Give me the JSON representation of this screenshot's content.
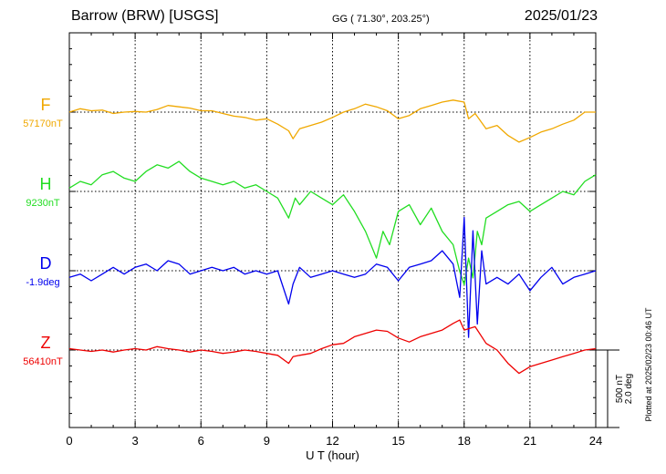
{
  "header": {
    "station": "Barrow (BRW)  [USGS]",
    "coords": "GG ( 71.30°, 203.25°)",
    "date": "2025/01/23"
  },
  "plotted_note": "Plotted at 2025/02/23 00:46 UT",
  "scale_bar": {
    "nt": "500 nT",
    "deg": "2.0 deg"
  },
  "chart_data": {
    "type": "line",
    "xlabel": "U T (hour)",
    "xlim": [
      0,
      24
    ],
    "xticks": [
      0,
      3,
      6,
      9,
      12,
      15,
      18,
      21,
      24
    ],
    "grid": true,
    "scale_per_division": "500 nT / 2.0 deg",
    "series": [
      {
        "name": "F",
        "baseline_label": "57170nT",
        "color": "#f0a800",
        "baseline_row": 1,
        "x": [
          0,
          0.5,
          1,
          1.5,
          2,
          2.5,
          3,
          3.5,
          4,
          4.5,
          5,
          5.5,
          6,
          6.5,
          7,
          7.5,
          8,
          8.5,
          9,
          9.5,
          10,
          10.2,
          10.5,
          11,
          11.5,
          12,
          12.5,
          13,
          13.5,
          14,
          14.5,
          15,
          15.5,
          16,
          16.5,
          17,
          17.5,
          18,
          18.2,
          18.5,
          19,
          19.5,
          20,
          20.5,
          21,
          21.5,
          22,
          22.5,
          23,
          23.5,
          24
        ],
        "y": [
          0,
          5,
          2,
          3,
          -2,
          0,
          1,
          0,
          4,
          10,
          8,
          6,
          2,
          2,
          -2,
          -6,
          -8,
          -12,
          -10,
          -18,
          -28,
          -40,
          -25,
          -20,
          -15,
          -8,
          0,
          5,
          12,
          8,
          2,
          -10,
          -5,
          5,
          10,
          15,
          18,
          15,
          -10,
          -2,
          -25,
          -20,
          -35,
          -45,
          -38,
          -30,
          -25,
          -18,
          -12,
          0,
          0
        ]
      },
      {
        "name": "H",
        "baseline_label": "9230nT",
        "color": "#22dd22",
        "baseline_row": 2,
        "x": [
          0,
          0.5,
          1,
          1.5,
          2,
          2.5,
          3,
          3.5,
          4,
          4.5,
          5,
          5.5,
          6,
          6.5,
          7,
          7.5,
          8,
          8.5,
          9,
          9.5,
          10,
          10.3,
          10.5,
          11,
          11.5,
          12,
          12.5,
          13,
          13.5,
          14,
          14.3,
          14.6,
          15,
          15.5,
          16,
          16.5,
          17,
          17.5,
          17.8,
          18,
          18.2,
          18.4,
          18.6,
          18.8,
          19,
          19.5,
          20,
          20.5,
          21,
          21.5,
          22,
          22.5,
          23,
          23.5,
          24
        ],
        "y": [
          5,
          15,
          10,
          25,
          30,
          20,
          15,
          30,
          40,
          35,
          45,
          30,
          20,
          15,
          10,
          15,
          5,
          10,
          0,
          -10,
          -40,
          -10,
          -20,
          0,
          -10,
          -20,
          -5,
          -30,
          -60,
          -100,
          -60,
          -80,
          -30,
          -20,
          -50,
          -25,
          -60,
          -80,
          -120,
          -140,
          -100,
          -130,
          -60,
          -80,
          -40,
          -30,
          -20,
          -15,
          -30,
          -20,
          -10,
          0,
          -5,
          15,
          25
        ]
      },
      {
        "name": "D",
        "baseline_label": "-1.9deg",
        "color": "#0000ee",
        "baseline_row": 3,
        "x": [
          0,
          0.5,
          1,
          1.5,
          2,
          2.5,
          3,
          3.5,
          4,
          4.5,
          5,
          5.5,
          6,
          6.5,
          7,
          7.5,
          8,
          8.5,
          9,
          9.5,
          10,
          10.2,
          10.5,
          11,
          11.5,
          12,
          12.5,
          13,
          13.5,
          14,
          14.5,
          15,
          15.5,
          16,
          16.5,
          17,
          17.5,
          17.8,
          18,
          18.2,
          18.4,
          18.6,
          18.8,
          19,
          19.5,
          20,
          20.5,
          21,
          21.5,
          22,
          22.5,
          23,
          23.5,
          24
        ],
        "y": [
          -10,
          -5,
          -15,
          -5,
          5,
          -5,
          5,
          10,
          0,
          15,
          10,
          -5,
          0,
          5,
          0,
          5,
          -5,
          0,
          -5,
          0,
          -50,
          -20,
          5,
          -10,
          -5,
          0,
          -5,
          -10,
          -5,
          10,
          5,
          -15,
          5,
          10,
          15,
          30,
          10,
          -40,
          80,
          -100,
          60,
          -80,
          30,
          -20,
          -10,
          -20,
          -5,
          -30,
          -10,
          5,
          -20,
          -10,
          -5,
          0
        ]
      },
      {
        "name": "Z",
        "baseline_label": "56410nT",
        "color": "#ee0000",
        "baseline_row": 4,
        "x": [
          0,
          0.5,
          1,
          1.5,
          2,
          2.5,
          3,
          3.5,
          4,
          4.5,
          5,
          5.5,
          6,
          6.5,
          7,
          7.5,
          8,
          8.5,
          9,
          9.5,
          10,
          10.2,
          10.5,
          11,
          11.5,
          12,
          12.5,
          13,
          13.5,
          14,
          14.5,
          15,
          15.5,
          16,
          16.5,
          17,
          17.5,
          17.8,
          18,
          18.5,
          19,
          19.5,
          20,
          20.5,
          21,
          21.5,
          22,
          22.5,
          23,
          23.5,
          24
        ],
        "y": [
          2,
          0,
          -2,
          0,
          -3,
          0,
          2,
          0,
          5,
          2,
          0,
          -3,
          0,
          -2,
          -5,
          -3,
          0,
          -2,
          -5,
          -8,
          -20,
          -10,
          -8,
          -5,
          2,
          8,
          10,
          20,
          25,
          30,
          28,
          18,
          12,
          20,
          25,
          30,
          40,
          45,
          30,
          35,
          10,
          0,
          -20,
          -35,
          -25,
          -20,
          -15,
          -10,
          -5,
          0,
          2
        ]
      }
    ]
  }
}
